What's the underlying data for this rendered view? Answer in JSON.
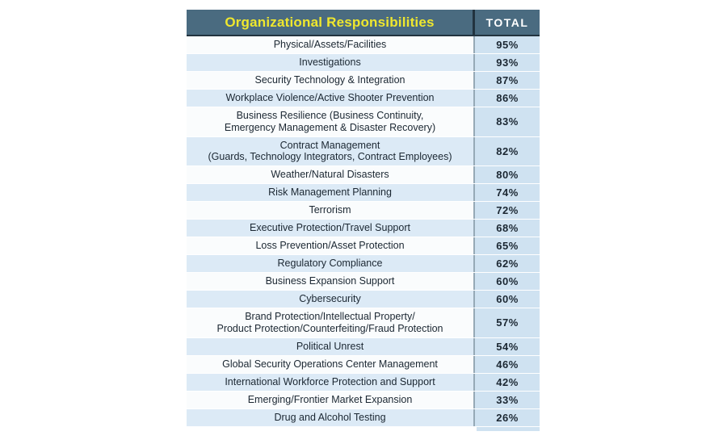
{
  "colors": {
    "header_bg": "#4a6b80",
    "header_title_text": "#efe72e",
    "header_total_text": "#ffffff",
    "header_divider": "#22333f",
    "row_stripe_white": "#fafcfd",
    "row_stripe_blue": "#dceaf6",
    "total_column_bg": "#cfe2f1",
    "body_divider": "#96a9b6",
    "body_text": "#1b2732"
  },
  "table": {
    "title": "Organizational Responsibilities",
    "total_label": "TOTAL",
    "rows": [
      {
        "label": "Physical/Assets/Facilities",
        "value": "95%"
      },
      {
        "label": "Investigations",
        "value": "93%"
      },
      {
        "label": "Security Technology & Integration",
        "value": "87%"
      },
      {
        "label": "Workplace Violence/Active Shooter Prevention",
        "value": "86%"
      },
      {
        "label": "Business Resilience (Business Continuity,\nEmergency Management & Disaster Recovery)",
        "value": "83%"
      },
      {
        "label": "Contract Management\n(Guards, Technology Integrators, Contract Employees)",
        "value": "82%"
      },
      {
        "label": "Weather/Natural Disasters",
        "value": "80%"
      },
      {
        "label": "Risk Management Planning",
        "value": "74%"
      },
      {
        "label": "Terrorism",
        "value": "72%"
      },
      {
        "label": "Executive Protection/Travel Support",
        "value": "68%"
      },
      {
        "label": "Loss Prevention/Asset Protection",
        "value": "65%"
      },
      {
        "label": "Regulatory Compliance",
        "value": "62%"
      },
      {
        "label": "Business Expansion Support",
        "value": "60%"
      },
      {
        "label": "Cybersecurity",
        "value": "60%"
      },
      {
        "label": "Brand Protection/Intellectual Property/\nProduct Protection/Counterfeiting/Fraud Protection",
        "value": "57%"
      },
      {
        "label": "Political Unrest",
        "value": "54%"
      },
      {
        "label": "Global Security Operations Center Management",
        "value": "46%"
      },
      {
        "label": "International Workforce Protection and Support",
        "value": "42%"
      },
      {
        "label": "Emerging/Frontier Market Expansion",
        "value": "33%"
      },
      {
        "label": "Drug and Alcohol Testing",
        "value": "26%"
      }
    ]
  },
  "chart_data": {
    "type": "table",
    "title": "Organizational Responsibilities",
    "columns": [
      "Organizational Responsibilities",
      "TOTAL"
    ],
    "categories": [
      "Physical/Assets/Facilities",
      "Investigations",
      "Security Technology & Integration",
      "Workplace Violence/Active Shooter Prevention",
      "Business Resilience (Business Continuity, Emergency Management & Disaster Recovery)",
      "Contract Management (Guards, Technology Integrators, Contract Employees)",
      "Weather/Natural Disasters",
      "Risk Management Planning",
      "Terrorism",
      "Executive Protection/Travel Support",
      "Loss Prevention/Asset Protection",
      "Regulatory Compliance",
      "Business Expansion Support",
      "Cybersecurity",
      "Brand Protection/Intellectual Property/Product Protection/Counterfeiting/Fraud Protection",
      "Political Unrest",
      "Global Security Operations Center Management",
      "International Workforce Protection and Support",
      "Emerging/Frontier Market Expansion",
      "Drug and Alcohol Testing"
    ],
    "values": [
      95,
      93,
      87,
      86,
      83,
      82,
      80,
      74,
      72,
      68,
      65,
      62,
      60,
      60,
      57,
      54,
      46,
      42,
      33,
      26
    ],
    "value_format": "percent"
  }
}
